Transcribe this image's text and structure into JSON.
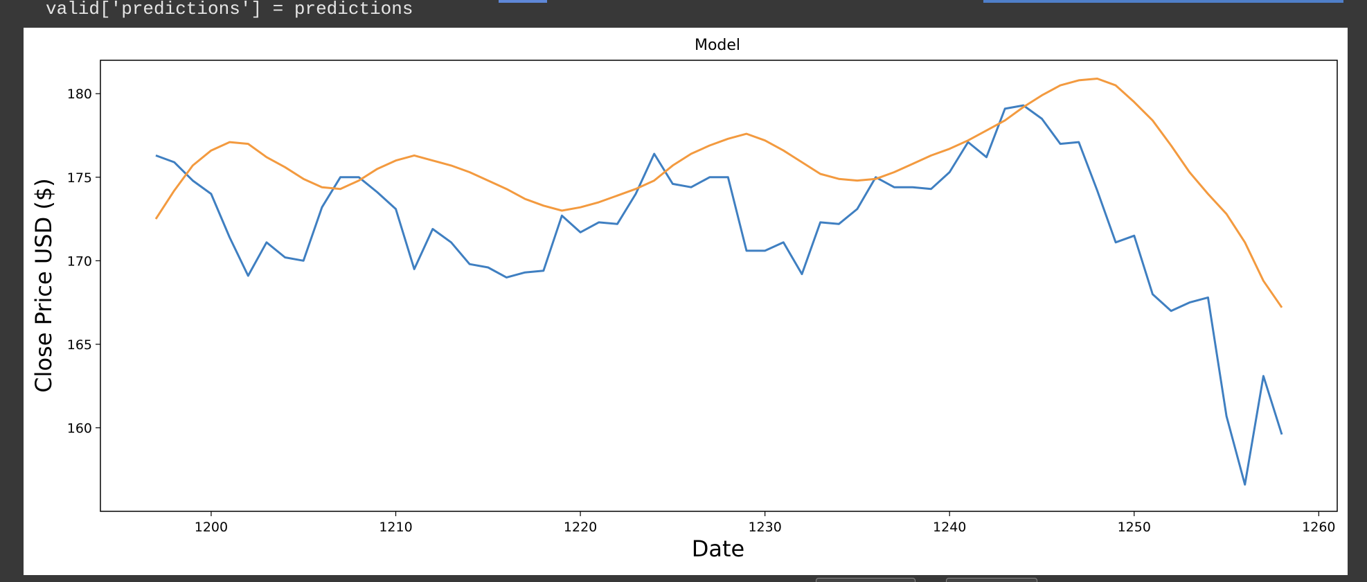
{
  "code_line": "valid['predictions'] = predictions",
  "chart_data": {
    "type": "line",
    "title": "Model",
    "xlabel": "Date",
    "ylabel": "Close Price USD ($)",
    "xlim": [
      1194,
      1261
    ],
    "ylim": [
      155,
      182
    ],
    "xticks": [
      1200,
      1210,
      1220,
      1230,
      1240,
      1250,
      1260
    ],
    "yticks": [
      160,
      165,
      170,
      175,
      180
    ],
    "grid": false,
    "x": [
      1197,
      1198,
      1199,
      1200,
      1201,
      1202,
      1203,
      1204,
      1205,
      1206,
      1207,
      1208,
      1209,
      1210,
      1211,
      1212,
      1213,
      1214,
      1215,
      1216,
      1217,
      1218,
      1219,
      1220,
      1221,
      1222,
      1223,
      1224,
      1225,
      1226,
      1227,
      1228,
      1229,
      1230,
      1231,
      1232,
      1233,
      1234,
      1235,
      1236,
      1237,
      1238,
      1239,
      1240,
      1241,
      1242,
      1243,
      1244,
      1245,
      1246,
      1247,
      1248,
      1249,
      1250,
      1251,
      1252,
      1253,
      1254,
      1255,
      1256,
      1257,
      1258
    ],
    "series": [
      {
        "color": "#3f7fc1",
        "values": [
          176.3,
          175.9,
          174.8,
          174.0,
          171.4,
          169.1,
          171.1,
          170.2,
          170.0,
          173.2,
          175.0,
          175.0,
          174.1,
          173.1,
          169.5,
          171.9,
          171.1,
          169.8,
          169.6,
          169.0,
          169.3,
          169.4,
          172.7,
          171.7,
          172.3,
          172.2,
          174.0,
          176.4,
          174.6,
          174.4,
          175.0,
          175.0,
          170.6,
          170.6,
          171.1,
          169.2,
          172.3,
          172.2,
          173.1,
          175.0,
          174.4,
          174.4,
          174.3,
          175.3,
          177.1,
          176.2,
          179.1,
          179.3,
          178.5,
          177.0,
          177.1,
          174.2,
          171.1,
          171.5,
          168.0,
          167.0,
          167.5,
          167.8,
          160.7,
          156.6,
          163.1,
          159.6
        ]
      },
      {
        "color": "#f39a3f",
        "values": [
          172.5,
          174.2,
          175.7,
          176.6,
          177.1,
          177.0,
          176.2,
          175.6,
          174.9,
          174.4,
          174.3,
          174.8,
          175.5,
          176.0,
          176.3,
          176.0,
          175.7,
          175.3,
          174.8,
          174.3,
          173.7,
          173.3,
          173.0,
          173.2,
          173.5,
          173.9,
          174.3,
          174.8,
          175.7,
          176.4,
          176.9,
          177.3,
          177.6,
          177.2,
          176.6,
          175.9,
          175.2,
          174.9,
          174.8,
          174.9,
          175.3,
          175.8,
          176.3,
          176.7,
          177.2,
          177.8,
          178.4,
          179.2,
          179.9,
          180.5,
          180.8,
          180.9,
          180.5,
          179.5,
          178.4,
          176.9,
          175.3,
          174.0,
          172.8,
          171.1,
          168.8,
          167.2
        ]
      }
    ]
  }
}
